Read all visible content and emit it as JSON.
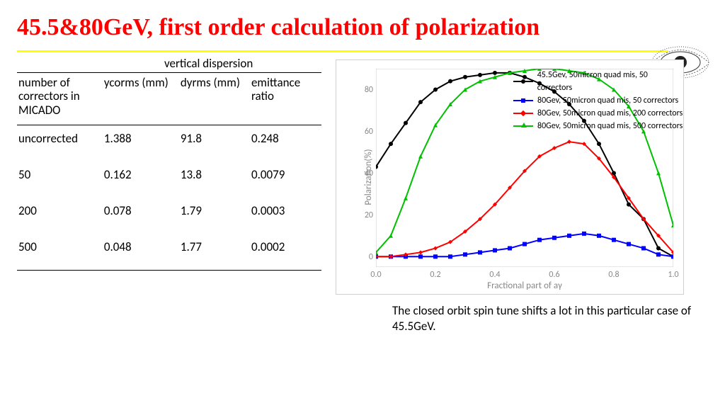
{
  "title": {
    "text": "45.5&80GeV, first order calculation of polarization",
    "color": "#ff0000",
    "fontsize": 34
  },
  "rule_color": "#ffff00",
  "eye_deco_color": "#666666",
  "table": {
    "super_header": "vertical dispersion",
    "columns": [
      "number of correctors in MICADO",
      "ycorms (mm)",
      "dyrms (mm)",
      "emittance ratio"
    ],
    "rows": [
      [
        "uncorrected",
        "1.388",
        "91.8",
        "0.248"
      ],
      [
        "50",
        "0.162",
        "13.8",
        "0.0079"
      ],
      [
        "200",
        "0.078",
        "1.79",
        "0.0003"
      ],
      [
        "500",
        "0.048",
        "1.77",
        "0.0002"
      ]
    ]
  },
  "chart": {
    "type": "line",
    "x_axis": {
      "label": "Fractional part of aγ",
      "min": 0.0,
      "max": 1.0,
      "ticks": [
        0.0,
        0.2,
        0.4,
        0.6,
        0.8,
        1.0
      ]
    },
    "y_axis": {
      "label": "Polarization(%)",
      "min": -5,
      "max": 90,
      "ticks": [
        0,
        20,
        40,
        60,
        80
      ]
    },
    "border_color": "#d0d0d0",
    "background_color": "#ffffff",
    "marker_radius": 3,
    "line_width": 2,
    "axis_text_color": "#888888",
    "axis_fontsize": 13,
    "tick_fontsize": 12,
    "legend_fontsize": 12,
    "series": [
      {
        "name": "45.5Gev, 50micron quad mis, 50 correctors",
        "color": "#000000",
        "marker": "circle",
        "x": [
          0.0,
          0.05,
          0.1,
          0.15,
          0.2,
          0.25,
          0.3,
          0.35,
          0.4,
          0.45,
          0.5,
          0.55,
          0.6,
          0.65,
          0.7,
          0.75,
          0.8,
          0.85,
          0.9,
          0.95,
          1.0
        ],
        "y": [
          43,
          54,
          64,
          74,
          80,
          84,
          86,
          87,
          88,
          88,
          86,
          83,
          79,
          73,
          65,
          54,
          40,
          25,
          18,
          4,
          0
        ]
      },
      {
        "name": "80Gev, 50micron quad mis, 50 correctors",
        "color": "#0000ff",
        "marker": "square",
        "x": [
          0.0,
          0.05,
          0.1,
          0.15,
          0.2,
          0.25,
          0.3,
          0.35,
          0.4,
          0.45,
          0.5,
          0.55,
          0.6,
          0.65,
          0.7,
          0.75,
          0.8,
          0.85,
          0.9,
          0.95,
          1.0
        ],
        "y": [
          0,
          0,
          0,
          0,
          0,
          0,
          1,
          2,
          3,
          4,
          6,
          8,
          9,
          10,
          11,
          10,
          8,
          6,
          4,
          1,
          0
        ]
      },
      {
        "name": "80Gev, 50micron quad mis, 200 correctors",
        "color": "#ff0000",
        "marker": "diamond",
        "x": [
          0.0,
          0.05,
          0.1,
          0.15,
          0.2,
          0.25,
          0.3,
          0.35,
          0.4,
          0.45,
          0.5,
          0.55,
          0.6,
          0.65,
          0.7,
          0.75,
          0.8,
          0.85,
          0.9,
          0.95,
          1.0
        ],
        "y": [
          0,
          0,
          1,
          2,
          4,
          7,
          12,
          18,
          25,
          33,
          41,
          48,
          52,
          55,
          54,
          47,
          38,
          28,
          18,
          10,
          2
        ]
      },
      {
        "name": "80Gev, 50micron quad mis, 500 correctors",
        "color": "#00c000",
        "marker": "triangle",
        "x": [
          0.0,
          0.05,
          0.1,
          0.15,
          0.2,
          0.25,
          0.3,
          0.35,
          0.4,
          0.45,
          0.5,
          0.55,
          0.6,
          0.65,
          0.7,
          0.75,
          0.8,
          0.85,
          0.9,
          0.95,
          1.0
        ],
        "y": [
          2,
          10,
          28,
          48,
          63,
          73,
          80,
          84,
          86,
          88,
          89,
          90,
          90,
          89,
          88,
          85,
          80,
          72,
          60,
          40,
          15
        ]
      }
    ]
  },
  "caption": "The closed orbit spin tune shifts a lot in this particular case of 45.5GeV."
}
